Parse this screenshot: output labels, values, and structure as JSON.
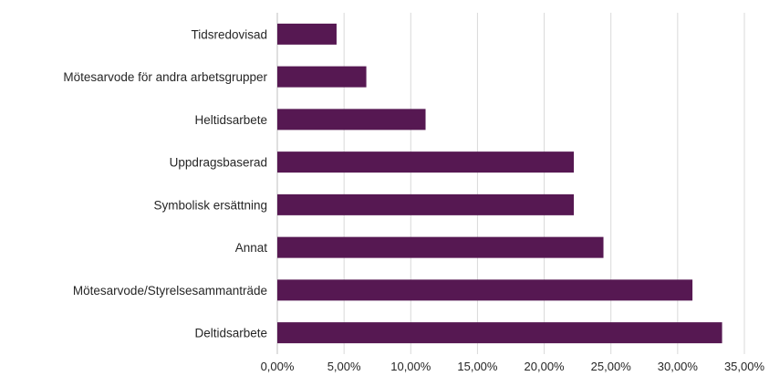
{
  "chart_data": {
    "type": "bar",
    "orientation": "horizontal",
    "title": "",
    "xlabel": "",
    "ylabel": "",
    "categories": [
      "Tidsredovisad",
      "Mötesarvode för andra arbetsgrupper",
      "Heltidsarbete",
      "Uppdragsbaserad",
      "Symbolisk ersättning",
      "Annat",
      "Mötesarvode/Styrelsesammanträde",
      "Deltidsarbete"
    ],
    "values": [
      4.44,
      6.67,
      11.11,
      22.22,
      22.22,
      24.44,
      31.11,
      33.33
    ],
    "xlim": [
      0,
      35
    ],
    "x_ticks": [
      "0,00%",
      "5,00%",
      "10,00%",
      "15,00%",
      "20,00%",
      "25,00%",
      "30,00%",
      "35,00%"
    ],
    "grid": "vertical",
    "legend": "none",
    "bar_color": "#561852"
  }
}
